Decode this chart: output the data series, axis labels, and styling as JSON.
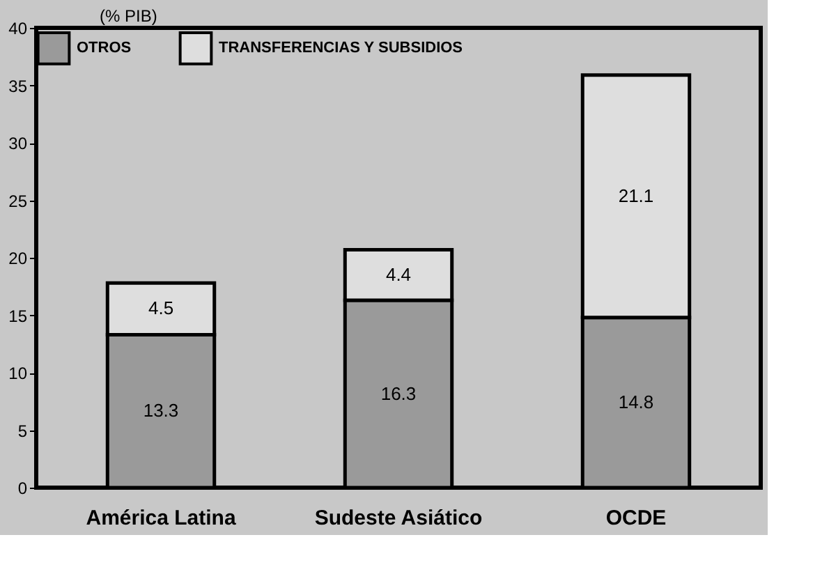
{
  "chart_data": {
    "type": "bar",
    "stacked": true,
    "ylabel": "(% PIB)",
    "categories": [
      "América Latina",
      "Sudeste Asiático",
      "OCDE"
    ],
    "series": [
      {
        "name": "OTROS",
        "color": "#9a9a9a",
        "values": [
          13.3,
          16.3,
          14.8
        ]
      },
      {
        "name": "TRANSFERENCIAS Y SUBSIDIOS",
        "color": "#dedede",
        "values": [
          4.5,
          4.4,
          21.1
        ]
      }
    ],
    "ylim": [
      0,
      40
    ],
    "yticks": [
      0,
      5,
      10,
      15,
      20,
      25,
      30,
      35,
      40
    ],
    "grid": false,
    "legend": "top",
    "data_labels": true
  }
}
